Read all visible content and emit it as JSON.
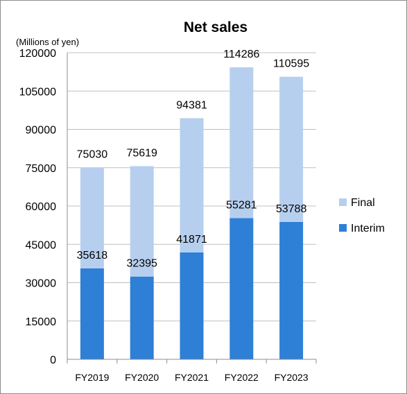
{
  "chart_data": {
    "type": "bar",
    "stacked": true,
    "title": "Net sales",
    "unit_label": "(Millions of yen)",
    "categories": [
      "FY2019",
      "FY2020",
      "FY2021",
      "FY2022",
      "FY2023"
    ],
    "series": [
      {
        "name": "Interim",
        "values": [
          35618,
          32395,
          41871,
          55281,
          53788
        ],
        "color": "#2e7fd6"
      },
      {
        "name": "Final",
        "values": [
          39412,
          43224,
          52510,
          59005,
          56807
        ],
        "color": "#b7cfee"
      }
    ],
    "interim_labels": [
      "35618",
      "32395",
      "41871",
      "55281",
      "53788"
    ],
    "total_labels": [
      "75030",
      "75619",
      "94381",
      "114286",
      "110595"
    ],
    "yticks": [
      "0",
      "15000",
      "30000",
      "45000",
      "60000",
      "75000",
      "90000",
      "105000",
      "120000"
    ],
    "ylim": [
      0,
      120000
    ],
    "grid": true,
    "legend_position": "right"
  }
}
